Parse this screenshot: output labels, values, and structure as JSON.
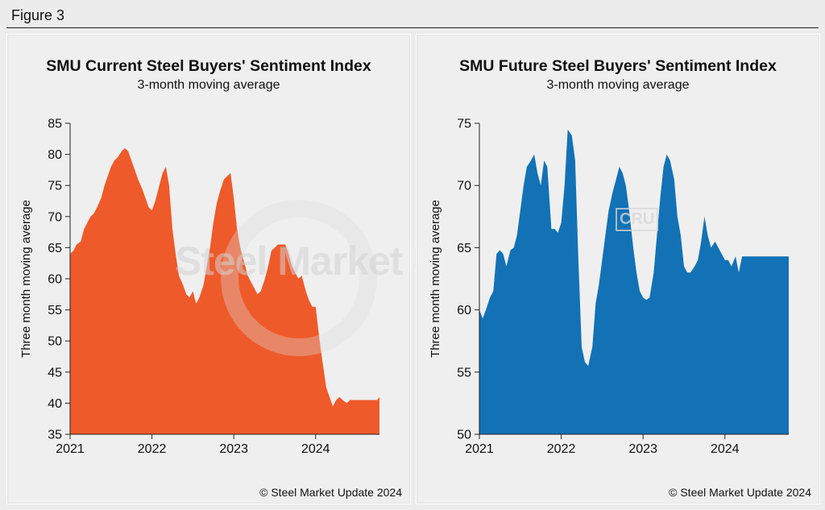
{
  "figure_label": "Figure 3",
  "watermark": "Steel Market Update",
  "cru_logo": "CRU",
  "credit": "© Steel Market Update 2024",
  "colors": {
    "current": "#ef5a2a",
    "future": "#1272b5"
  },
  "chart_data": [
    {
      "type": "area",
      "title": "SMU Current Steel Buyers' Sentiment Index",
      "subtitle": "3-month moving average",
      "ylabel": "Three month moving average",
      "ylim": [
        35,
        85
      ],
      "yticks": [
        35,
        40,
        45,
        50,
        55,
        60,
        65,
        70,
        75,
        80,
        85
      ],
      "xlim": [
        2021.0,
        2024.78
      ],
      "xticks": [
        "2021",
        "2022",
        "2023",
        "2024"
      ],
      "x": [
        2021.0,
        2021.04,
        2021.08,
        2021.13,
        2021.17,
        2021.21,
        2021.25,
        2021.29,
        2021.33,
        2021.38,
        2021.42,
        2021.46,
        2021.5,
        2021.54,
        2021.58,
        2021.63,
        2021.67,
        2021.71,
        2021.75,
        2021.79,
        2021.83,
        2021.88,
        2021.92,
        2021.96,
        2022.0,
        2022.04,
        2022.08,
        2022.13,
        2022.17,
        2022.21,
        2022.25,
        2022.29,
        2022.33,
        2022.38,
        2022.42,
        2022.46,
        2022.5,
        2022.54,
        2022.58,
        2022.63,
        2022.67,
        2022.71,
        2022.75,
        2022.79,
        2022.83,
        2022.88,
        2022.92,
        2022.96,
        2023.0,
        2023.04,
        2023.08,
        2023.13,
        2023.17,
        2023.21,
        2023.25,
        2023.29,
        2023.33,
        2023.38,
        2023.42,
        2023.46,
        2023.5,
        2023.54,
        2023.58,
        2023.63,
        2023.67,
        2023.71,
        2023.75,
        2023.79,
        2023.83,
        2023.88,
        2023.92,
        2023.96,
        2024.0,
        2024.04,
        2024.08,
        2024.13,
        2024.17,
        2024.21,
        2024.25,
        2024.29,
        2024.33,
        2024.38,
        2024.42,
        2024.46,
        2024.5,
        2024.54,
        2024.58,
        2024.63,
        2024.67,
        2024.71,
        2024.75,
        2024.78
      ],
      "values": [
        64,
        64.5,
        65.5,
        66,
        68,
        69,
        70,
        70.5,
        71.5,
        73,
        75,
        76.5,
        78,
        79,
        79.5,
        80.5,
        81,
        80.5,
        79,
        77.5,
        76,
        74.5,
        73,
        71.5,
        71,
        72.5,
        74.5,
        77,
        78,
        75,
        68,
        64,
        60.5,
        59,
        57.5,
        57,
        58,
        56,
        57,
        59,
        62,
        65,
        69,
        72,
        74,
        76,
        76.5,
        77,
        73,
        68,
        65,
        62.5,
        60.5,
        59.5,
        58.5,
        57.5,
        58,
        60,
        62,
        64.5,
        65,
        65.5,
        65.5,
        65.5,
        64,
        62,
        61,
        60,
        60.5,
        58,
        56.5,
        55.5,
        55.5,
        51,
        47,
        42.5,
        41,
        39.5,
        40.5,
        41,
        40.5,
        40,
        40.5,
        40.5,
        40.5,
        40.5,
        40.5,
        40.5,
        40.5,
        40.5,
        40.5,
        41
      ]
    },
    {
      "type": "area",
      "title": "SMU Future Steel Buyers' Sentiment Index",
      "subtitle": "3-month moving average",
      "ylabel": "Three month moving average",
      "ylim": [
        50,
        75
      ],
      "yticks": [
        50,
        55,
        60,
        65,
        70,
        75
      ],
      "xlim": [
        2021.0,
        2024.78
      ],
      "xticks": [
        "2021",
        "2022",
        "2023",
        "2024"
      ],
      "x": [
        2021.0,
        2021.04,
        2021.08,
        2021.13,
        2021.17,
        2021.21,
        2021.25,
        2021.29,
        2021.33,
        2021.38,
        2021.42,
        2021.46,
        2021.5,
        2021.54,
        2021.58,
        2021.63,
        2021.67,
        2021.71,
        2021.75,
        2021.79,
        2021.83,
        2021.88,
        2021.92,
        2021.96,
        2022.0,
        2022.04,
        2022.08,
        2022.13,
        2022.17,
        2022.21,
        2022.25,
        2022.29,
        2022.33,
        2022.38,
        2022.42,
        2022.46,
        2022.5,
        2022.54,
        2022.58,
        2022.63,
        2022.67,
        2022.71,
        2022.75,
        2022.79,
        2022.83,
        2022.88,
        2022.92,
        2022.96,
        2023.0,
        2023.04,
        2023.08,
        2023.13,
        2023.17,
        2023.21,
        2023.25,
        2023.29,
        2023.33,
        2023.38,
        2023.42,
        2023.46,
        2023.5,
        2023.54,
        2023.58,
        2023.63,
        2023.67,
        2023.71,
        2023.75,
        2023.79,
        2023.83,
        2023.88,
        2023.92,
        2023.96,
        2024.0,
        2024.04,
        2024.08,
        2024.13,
        2024.17,
        2024.21,
        2024.25,
        2024.29,
        2024.33,
        2024.38,
        2024.42,
        2024.46,
        2024.5,
        2024.54,
        2024.58,
        2024.63,
        2024.67,
        2024.71,
        2024.75,
        2024.78
      ],
      "values": [
        60,
        59.3,
        60,
        61,
        61.5,
        64.5,
        64.8,
        64.5,
        63.5,
        64.8,
        65,
        66,
        68,
        70,
        71.5,
        72,
        72.5,
        71,
        70,
        72,
        71.5,
        66.5,
        66.5,
        66.2,
        67,
        70,
        74.5,
        74,
        72,
        64,
        57,
        55.8,
        55.5,
        57,
        60.5,
        62,
        64,
        66,
        68,
        69.5,
        70.5,
        71.5,
        71,
        70,
        68,
        65,
        63,
        61.5,
        61,
        60.8,
        61,
        63,
        66,
        69,
        71.5,
        72.5,
        72,
        70.5,
        67.5,
        66,
        63.5,
        63,
        63,
        63.5,
        64,
        65.5,
        67.5,
        66,
        65,
        65.5,
        65,
        64.5,
        64,
        64,
        63.5,
        64.3,
        63,
        64.3,
        64.3,
        64.3,
        64.3,
        64.3,
        64.3,
        64.3,
        64.3,
        64.3,
        64.3,
        64.3,
        64.3,
        64.3,
        64.3,
        64.3
      ]
    }
  ]
}
